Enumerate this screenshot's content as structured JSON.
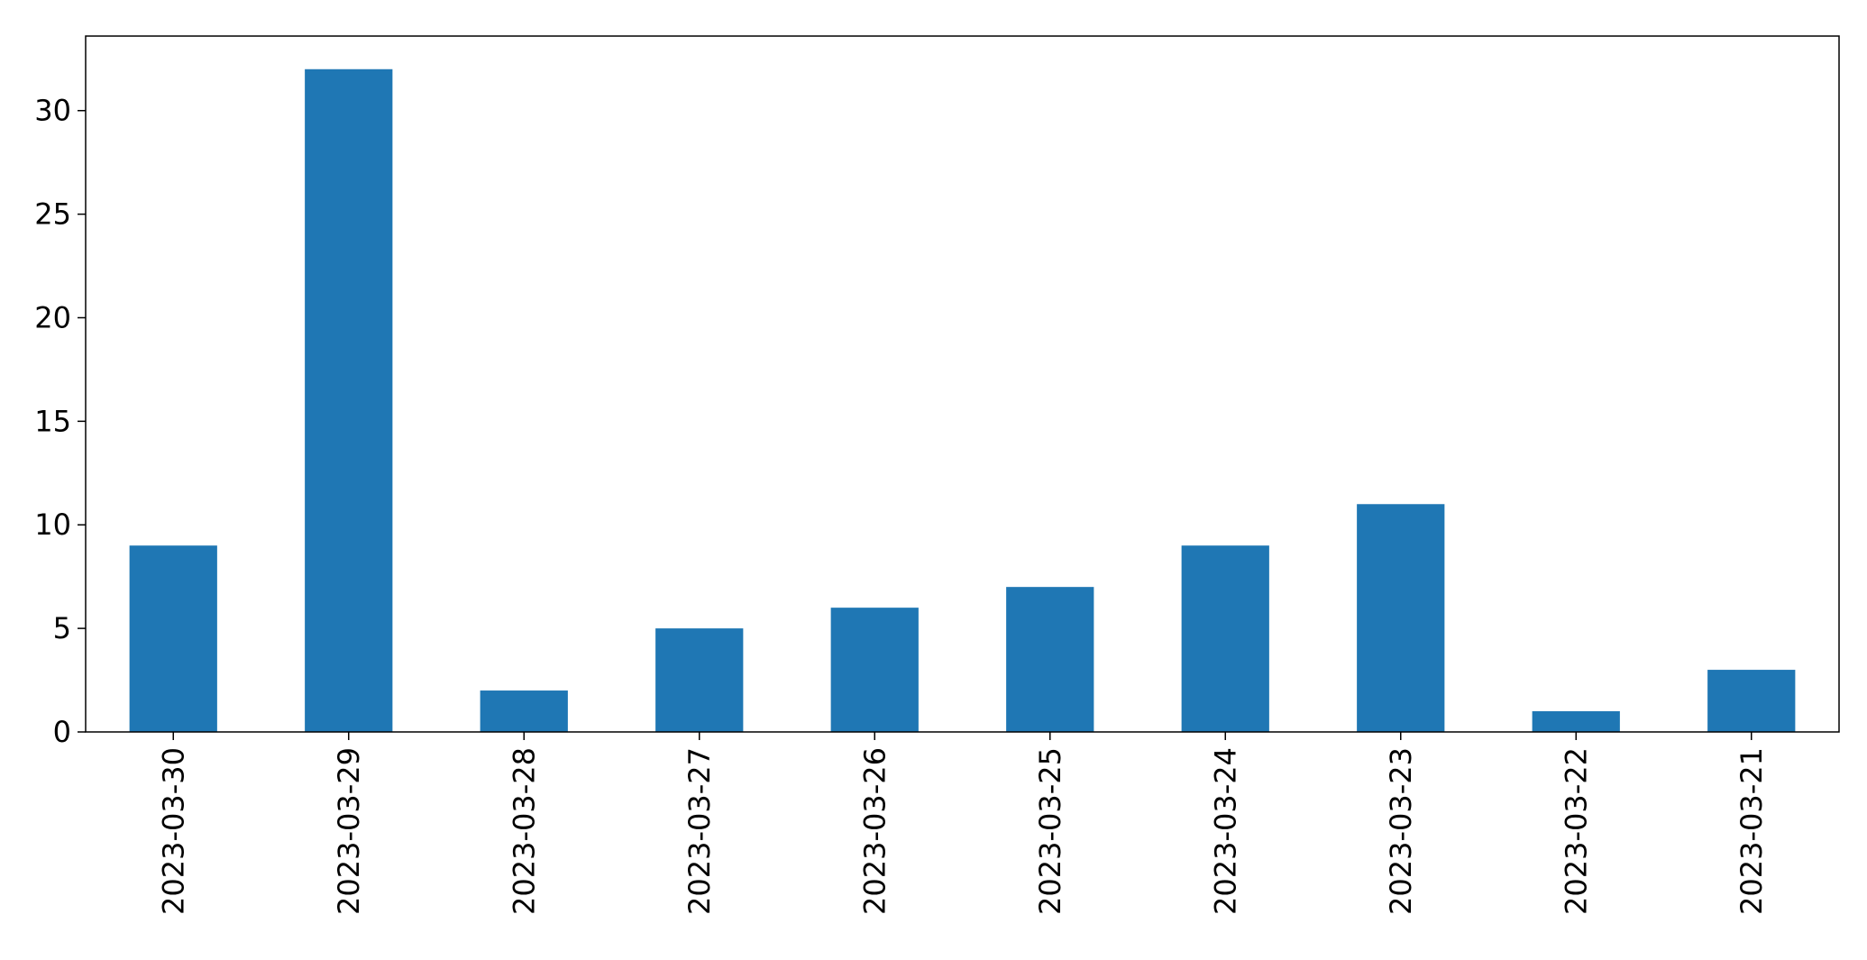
{
  "chart_data": {
    "type": "bar",
    "title": "",
    "xlabel": "",
    "ylabel": "",
    "categories": [
      "2023-03-30",
      "2023-03-29",
      "2023-03-28",
      "2023-03-27",
      "2023-03-26",
      "2023-03-25",
      "2023-03-24",
      "2023-03-23",
      "2023-03-22",
      "2023-03-21"
    ],
    "values": [
      9,
      32,
      2,
      5,
      6,
      7,
      9,
      11,
      1,
      3
    ],
    "ylim": [
      0,
      33.6
    ],
    "yticks": [
      0,
      5,
      10,
      15,
      20,
      25,
      30
    ],
    "grid": false,
    "legend": "none",
    "bar_color": "#1f77b4",
    "x_tick_rotation": "vertical"
  }
}
